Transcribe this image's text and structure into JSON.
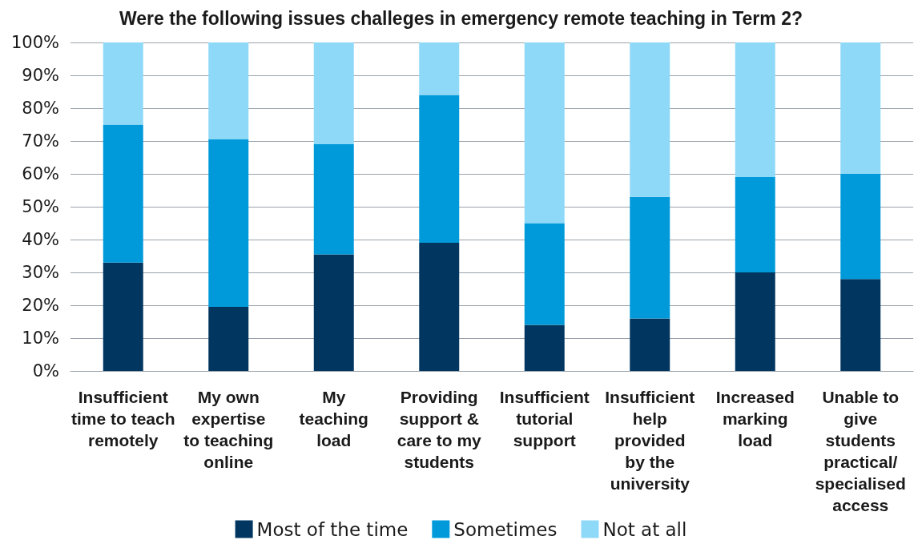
{
  "chart_data": {
    "type": "bar",
    "title": "Were the following issues challeges in emergency remote teaching in Term 2?",
    "categories": [
      "Insufficient\ntime to teach\nremotely",
      "My own\nexpertise\nto teaching\nonline",
      "My\nteaching\nload",
      "Providing\nsupport &\ncare to my\nstudents",
      "Insufficient\ntutorial\nsupport",
      "Insufficient\nhelp\nprovided\nby the\nuniversity",
      "Increased\nmarking\nload",
      "Unable to\ngive\nstudents\npractical/\nspecialised\naccess"
    ],
    "stacked": true,
    "series": [
      {
        "name": "Most of the time",
        "color": "#003660",
        "values": [
          33,
          19.5,
          35.5,
          39,
          14,
          16,
          30,
          28
        ]
      },
      {
        "name": "Sometimes",
        "color": "#009ada",
        "values": [
          42,
          51,
          33.5,
          45,
          31,
          37,
          29,
          32
        ]
      },
      {
        "name": "Not at all",
        "color": "#8ed8f8",
        "values": [
          25,
          29.5,
          31,
          16,
          55,
          47,
          41,
          40
        ]
      }
    ],
    "ylim": [
      0,
      100
    ],
    "yticks": [
      {
        "value": 0,
        "label": "0%"
      },
      {
        "value": 10,
        "label": "10%"
      },
      {
        "value": 20,
        "label": "20%"
      },
      {
        "value": 30,
        "label": "30%"
      },
      {
        "value": 40,
        "label": "40%"
      },
      {
        "value": 50,
        "label": "50%"
      },
      {
        "value": 60,
        "label": "60%"
      },
      {
        "value": 70,
        "label": "70%"
      },
      {
        "value": 80,
        "label": "80%"
      },
      {
        "value": 90,
        "label": "90%"
      },
      {
        "value": 100,
        "label": "100%"
      }
    ],
    "grid": "y",
    "legend": "bottom"
  }
}
